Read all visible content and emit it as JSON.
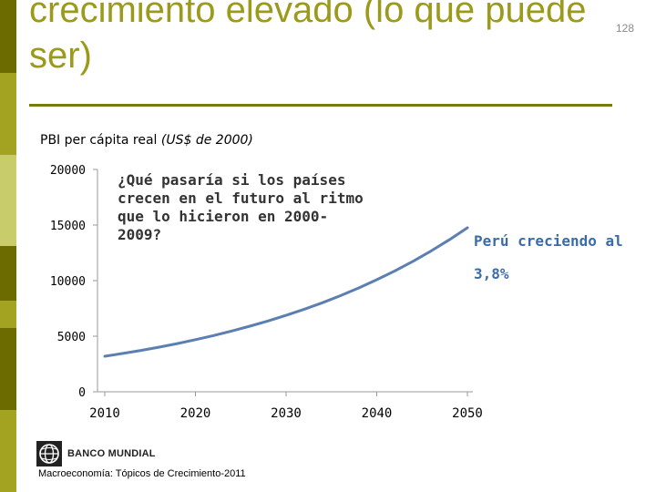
{
  "slide": {
    "title": "crecimiento elevado (lo que puede ser)",
    "page_number": "128",
    "colors": {
      "title": "#9c9a1a",
      "rule": "#7a7a10",
      "sidebar": [
        "#6b6b00",
        "#a3a321",
        "#c9cc6a",
        "#6b6b00",
        "#a3a321",
        "#6b6b00",
        "#a3a321"
      ],
      "series_line": "#5b7fb1",
      "peru_label": "#3b6ca8"
    }
  },
  "chart_data": {
    "type": "line",
    "title": "PBI per cápita real",
    "title_unit": "(US$ de 2000)",
    "xlabel": "",
    "ylabel": "",
    "x_ticks": [
      "2010",
      "2020",
      "2030",
      "2040",
      "2050"
    ],
    "y_ticks": [
      "0",
      "5000",
      "10000",
      "15000",
      "20000"
    ],
    "xlim": [
      2010,
      2050
    ],
    "ylim": [
      0,
      20000
    ],
    "grid": false,
    "series": [
      {
        "x": [
          2010,
          2012,
          2014,
          2016,
          2018,
          2020,
          2022,
          2024,
          2026,
          2028,
          2030,
          2032,
          2034,
          2036,
          2038,
          2040,
          2042,
          2044,
          2046,
          2048,
          2050
        ],
        "values": [
          3200,
          3450,
          3720,
          4020,
          4340,
          4690,
          5060,
          5470,
          5900,
          6370,
          6880,
          7430,
          8010,
          8650,
          9340,
          10080,
          10880,
          11740,
          12670,
          13670,
          14750
        ]
      }
    ],
    "annotations": [
      {
        "text": "¿Qué pasaría si los países crecen en el futuro al ritmo que lo hicieron en 2000-2009?"
      },
      {
        "text": "Perú creciendo al 3,8%"
      }
    ]
  },
  "logo": {
    "text": "BANCO MUNDIAL",
    "icon": "globe-icon"
  },
  "footer": {
    "text": "Macroeconomía: Tópicos de Crecimiento-2011"
  }
}
